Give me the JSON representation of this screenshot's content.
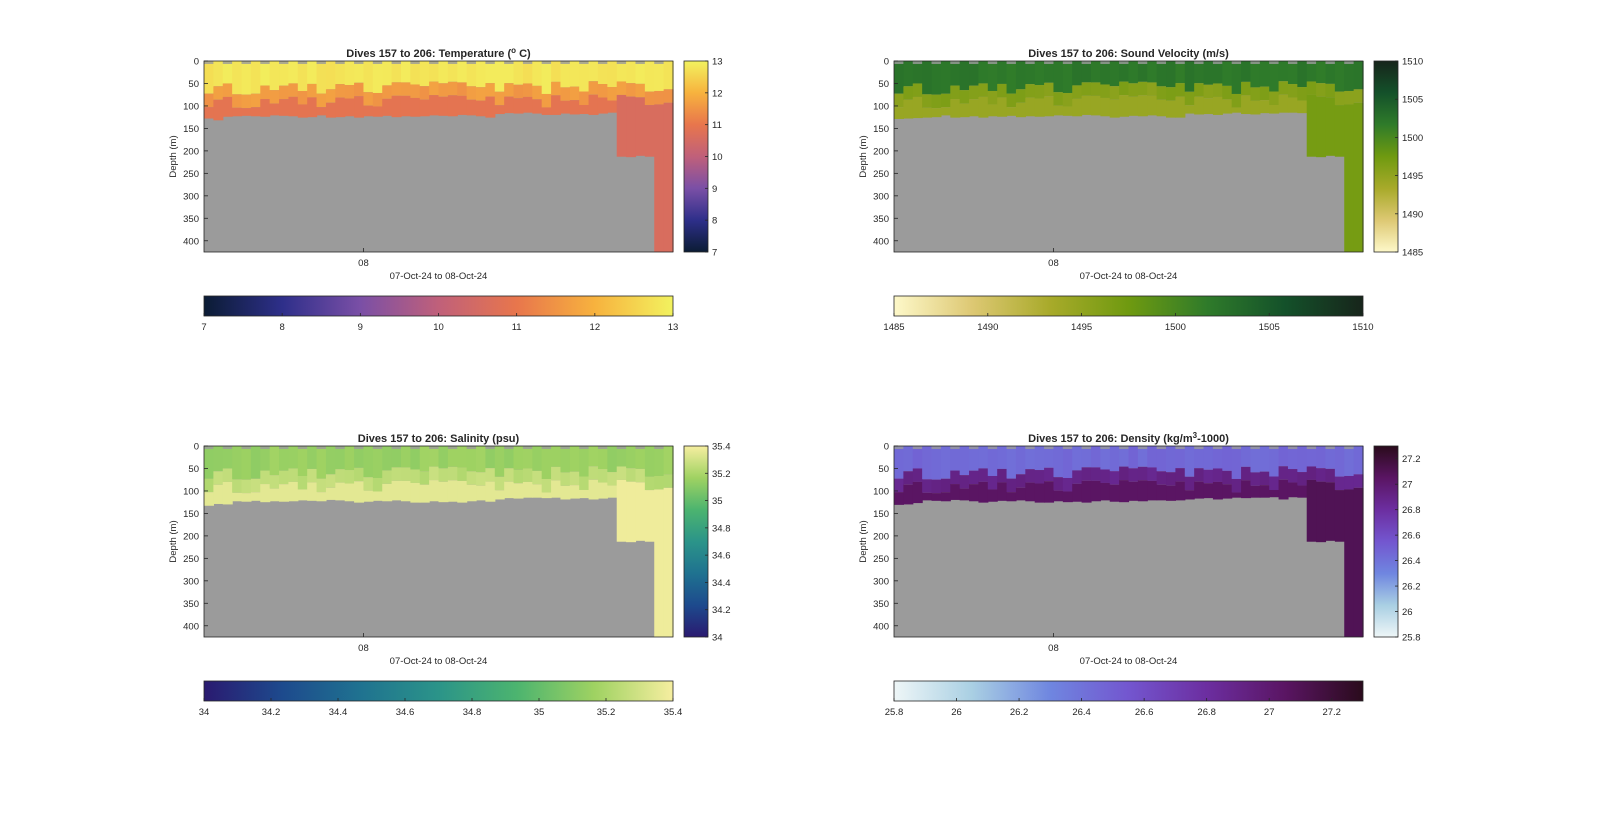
{
  "figure": {
    "date_range_label": "07-Oct-24 to 08-Oct-24",
    "x_tick_label": "08",
    "no_data_color": "#9b9b9b"
  },
  "chart_data": [
    {
      "type": "heatmap",
      "title": "Dives 157 to 206: Temperature (° C)",
      "title_parts": [
        "Dives 157 to 206: Temperature (",
        "o",
        " C)"
      ],
      "ylabel": "Depth (m)",
      "xlabel": "07-Oct-24 to 08-Oct-24",
      "x_ticks": [
        "08"
      ],
      "y_ticks": [
        0,
        50,
        100,
        150,
        200,
        250,
        300,
        350,
        400
      ],
      "ylim": [
        0,
        425
      ],
      "colorbar_range": [
        7,
        13
      ],
      "colorbar_ticks": [
        7,
        8,
        9,
        10,
        11,
        12,
        13
      ],
      "colormap": [
        "#0b1c34",
        "#2e2f8a",
        "#7a4fa6",
        "#c0607a",
        "#e8764c",
        "#f7b23e",
        "#f2f25f"
      ],
      "surface_value": 12.8,
      "mid_value": 11.6,
      "deep_value": 10.9,
      "bottom_value": 10.6
    },
    {
      "type": "heatmap",
      "title": "Dives 157 to 206: Sound Velocity (m/s)",
      "title_parts": [
        "Dives 157 to 206: Sound Velocity (m/s)"
      ],
      "ylabel": "Depth (m)",
      "xlabel": "07-Oct-24 to 08-Oct-24",
      "x_ticks": [
        "08"
      ],
      "y_ticks": [
        0,
        50,
        100,
        150,
        200,
        250,
        300,
        350,
        400
      ],
      "ylim": [
        0,
        425
      ],
      "colorbar_range": [
        1485,
        1510
      ],
      "colorbar_ticks": [
        1485,
        1490,
        1495,
        1500,
        1505,
        1510
      ],
      "colormap": [
        "#fdf8c9",
        "#ddc873",
        "#a8aa2a",
        "#6f9a10",
        "#2f7b2a",
        "#14512a",
        "#17251b"
      ],
      "surface_value": 1502,
      "mid_value": 1496,
      "deep_value": 1494.5,
      "bottom_value": 1497
    },
    {
      "type": "heatmap",
      "title": "Dives 157 to 206: Salinity (psu)",
      "title_parts": [
        "Dives 157 to 206: Salinity (psu)"
      ],
      "ylabel": "Depth (m)",
      "xlabel": "07-Oct-24 to 08-Oct-24",
      "x_ticks": [
        "08"
      ],
      "y_ticks": [
        0,
        50,
        100,
        150,
        200,
        250,
        300,
        350,
        400
      ],
      "ylim": [
        0,
        425
      ],
      "colorbar_range": [
        34,
        35.4
      ],
      "colorbar_ticks": [
        34,
        34.2,
        34.4,
        34.6,
        34.8,
        35,
        35.2,
        35.4
      ],
      "colormap": [
        "#2a1a70",
        "#1d4a8d",
        "#1f7290",
        "#2b9489",
        "#4cb46f",
        "#9fd262",
        "#f6eea0"
      ],
      "surface_value": 35.15,
      "mid_value": 35.25,
      "deep_value": 35.35,
      "bottom_value": 35.38
    },
    {
      "type": "heatmap",
      "title": "Dives 157 to 206: Density (kg/m³-1000)",
      "title_parts": [
        "Dives 157 to 206: Density (kg/m",
        "3",
        "-1000)"
      ],
      "ylabel": "Depth (m)",
      "xlabel": "07-Oct-24 to 08-Oct-24",
      "x_ticks": [
        "08"
      ],
      "y_ticks": [
        0,
        50,
        100,
        150,
        200,
        250,
        300,
        350,
        400
      ],
      "ylim": [
        0,
        425
      ],
      "colorbar_range": [
        25.8,
        27.3
      ],
      "colorbar_ticks": [
        25.8,
        26,
        26.2,
        26.4,
        26.6,
        26.8,
        27,
        27.2
      ],
      "colormap": [
        "#eef6f7",
        "#a9cfe3",
        "#6f86e0",
        "#7356cf",
        "#6c2ea0",
        "#5a1563",
        "#2a0b1c"
      ],
      "surface_value": 26.45,
      "mid_value": 26.9,
      "deep_value": 27.05,
      "bottom_value": 27.1
    }
  ]
}
